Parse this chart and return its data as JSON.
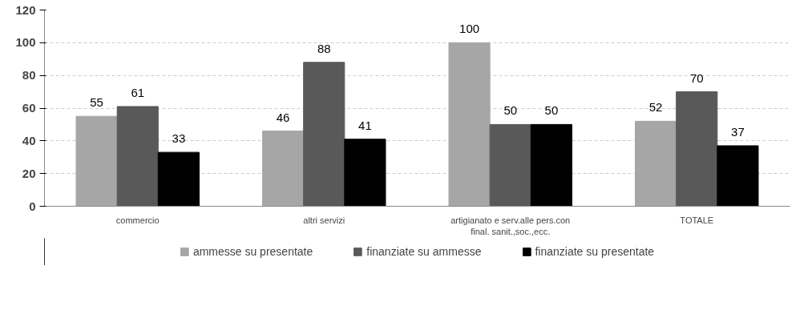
{
  "chart_data": {
    "type": "bar",
    "categories": [
      "commercio",
      "altri servizi",
      "artigianato e serv.alle pers.con final. sanit.,soc.,ecc.",
      "TOTALE"
    ],
    "series": [
      {
        "name": "ammesse su presentate",
        "color": "#a6a6a6",
        "values": [
          55,
          46,
          100,
          52
        ]
      },
      {
        "name": "finanziate su ammesse",
        "color": "#595959",
        "values": [
          61,
          88,
          50,
          70
        ]
      },
      {
        "name": "finanziate su presentate",
        "color": "#000000",
        "values": [
          33,
          41,
          50,
          37
        ]
      }
    ],
    "ylim": [
      0,
      120
    ],
    "yticks": [
      0,
      20,
      40,
      60,
      80,
      100,
      120
    ],
    "grid": "y",
    "legend": "bottom",
    "data_labels": true
  }
}
